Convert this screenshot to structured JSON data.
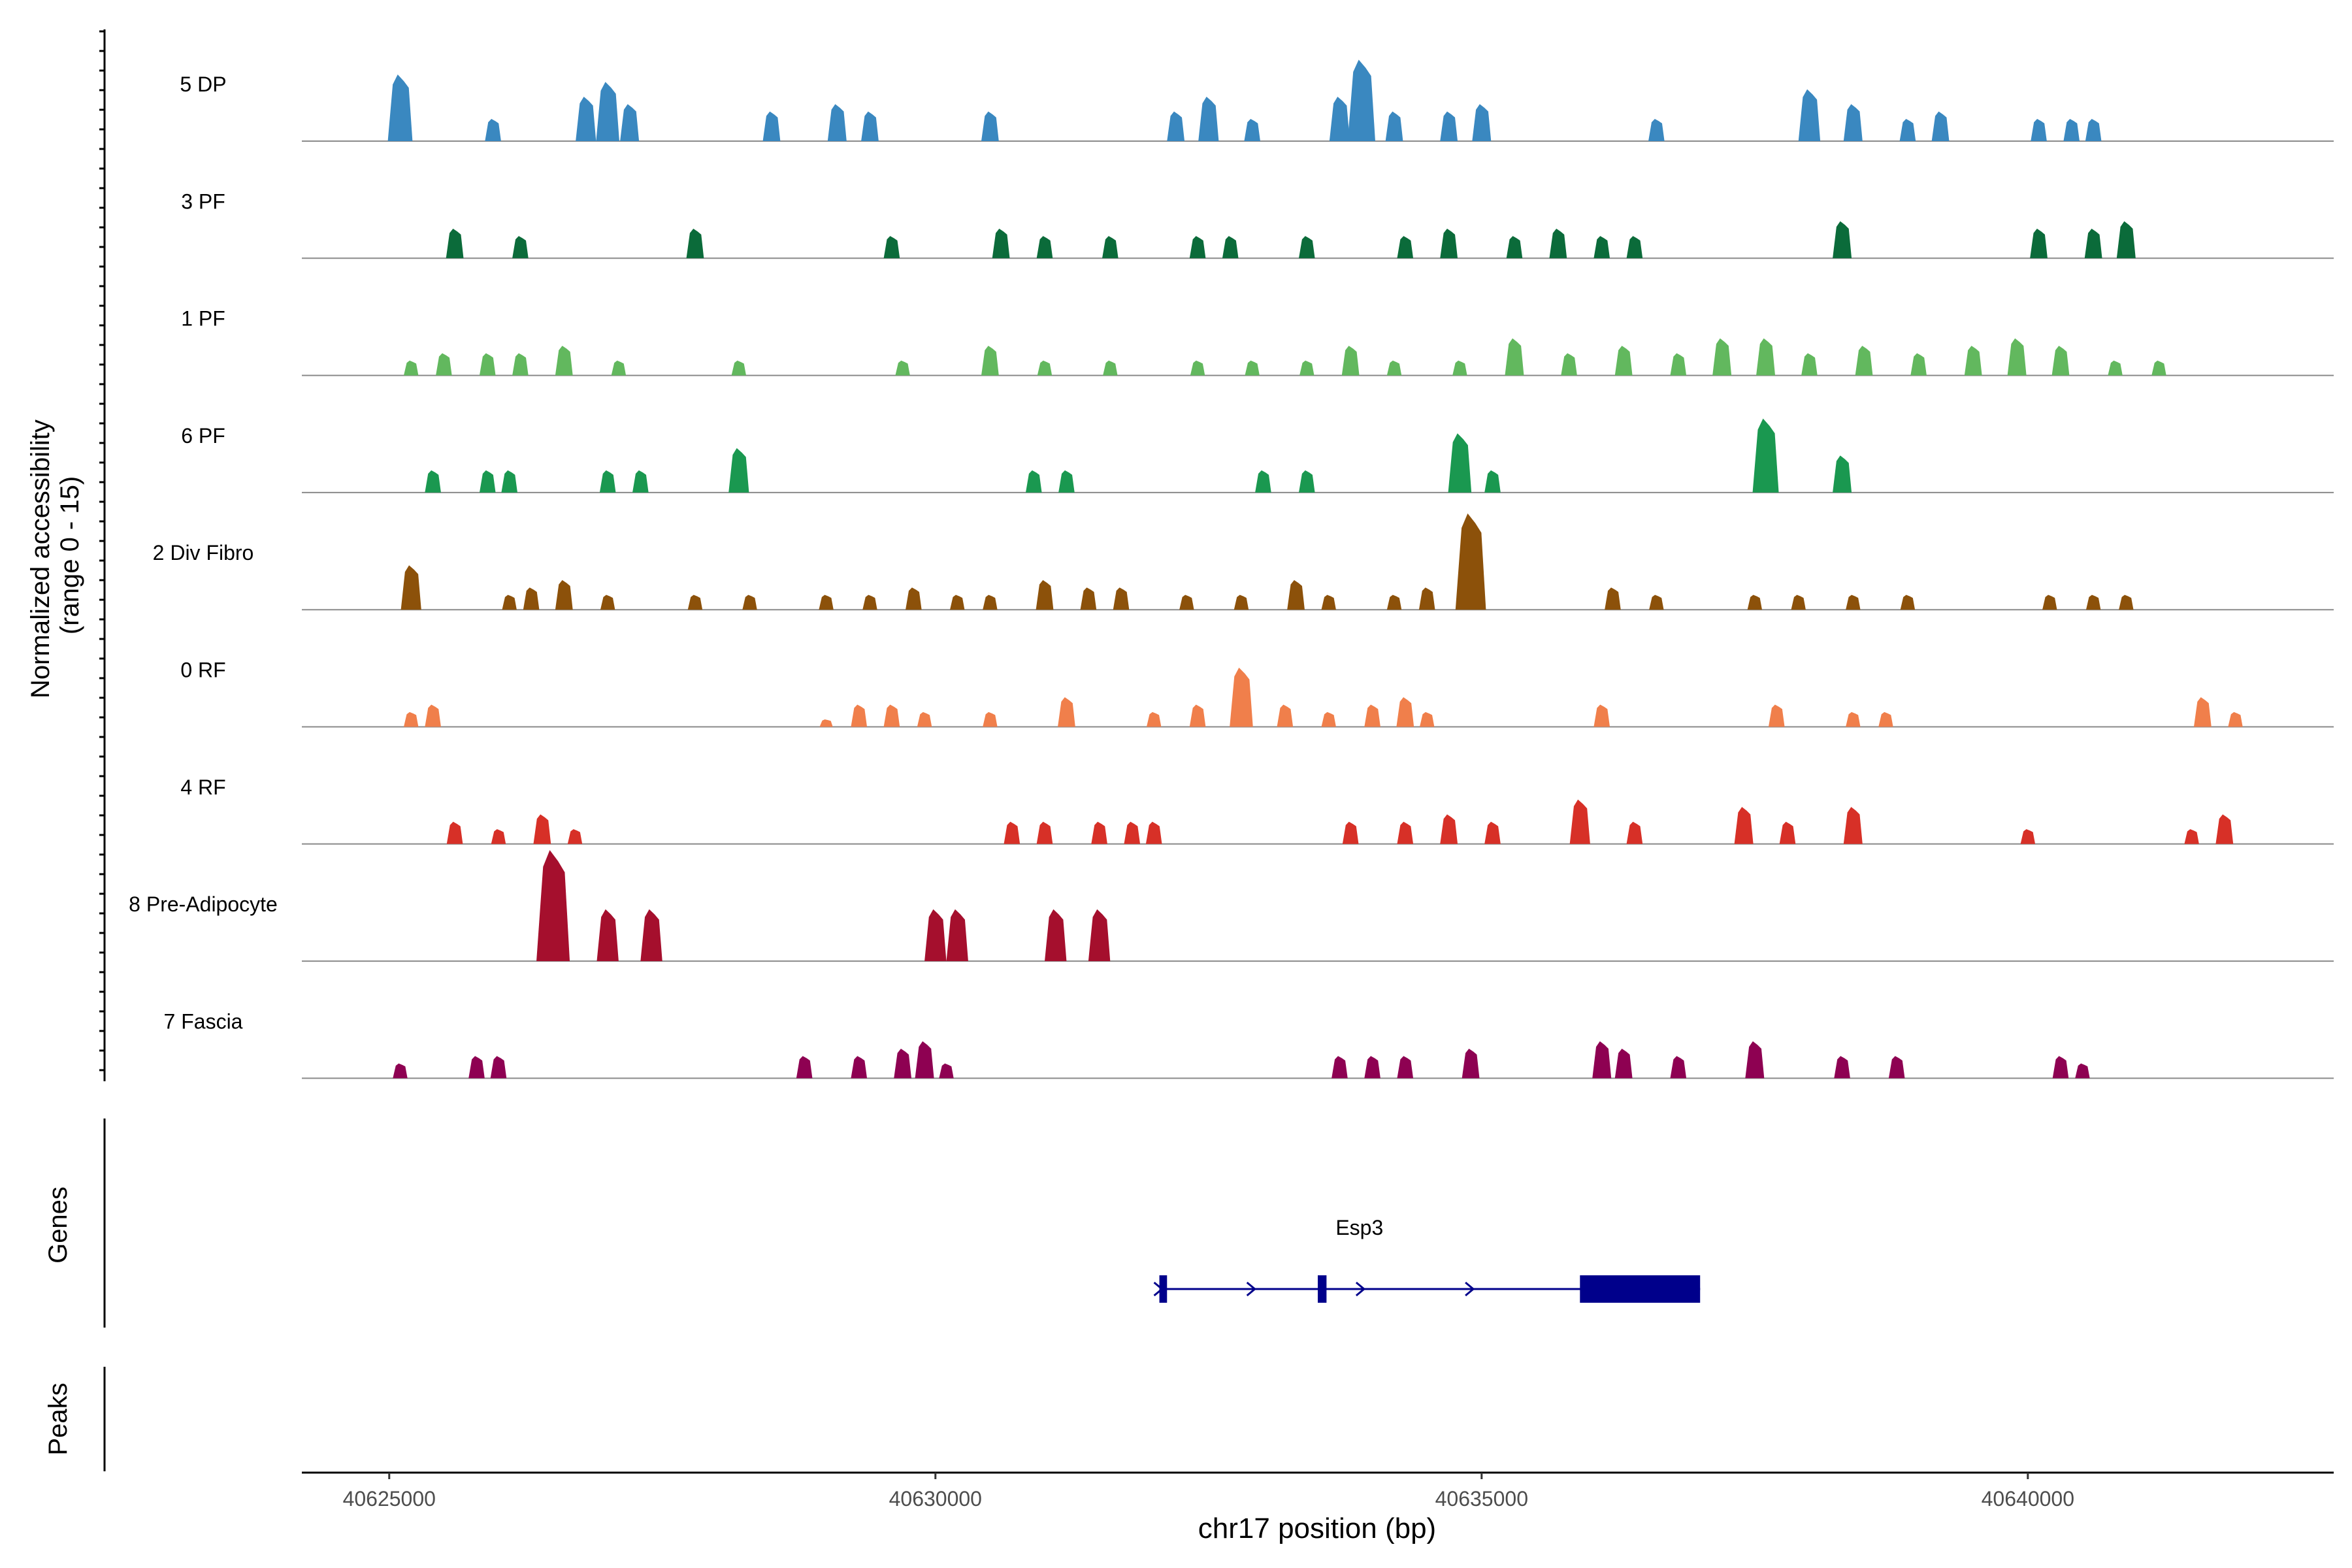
{
  "chart_data": {
    "type": "area",
    "title": "",
    "ylabel_line1": "Normalized accessibility",
    "ylabel_line2": "(range 0 - 15)",
    "xlabel": "chr17 position (bp)",
    "xlim": [
      40624200,
      40642800
    ],
    "ylim": [
      0,
      15
    ],
    "x_ticks": [
      40625000,
      40630000,
      40635000,
      40640000
    ],
    "x_tick_labels": [
      "40625000",
      "40630000",
      "40635000",
      "40640000"
    ],
    "tracks": [
      {
        "name": "5 DP",
        "color": "#3A88C0",
        "peaks": [
          [
            40625100,
            9
          ],
          [
            40625950,
            3
          ],
          [
            40626800,
            6
          ],
          [
            40627000,
            8
          ],
          [
            40627200,
            5
          ],
          [
            40628500,
            4
          ],
          [
            40629100,
            5
          ],
          [
            40629400,
            4
          ],
          [
            40630500,
            4
          ],
          [
            40632200,
            4
          ],
          [
            40632500,
            6
          ],
          [
            40632900,
            3
          ],
          [
            40633700,
            6
          ],
          [
            40633900,
            11
          ],
          [
            40634200,
            4
          ],
          [
            40634700,
            4
          ],
          [
            40635000,
            5
          ],
          [
            40636600,
            3
          ],
          [
            40638000,
            7
          ],
          [
            40638400,
            5
          ],
          [
            40638900,
            3
          ],
          [
            40639200,
            4
          ],
          [
            40640100,
            3
          ],
          [
            40640400,
            3
          ],
          [
            40640600,
            3
          ]
        ]
      },
      {
        "name": "3 PF",
        "color": "#0B6B3A",
        "peaks": [
          [
            40625600,
            4
          ],
          [
            40626200,
            3
          ],
          [
            40627800,
            4
          ],
          [
            40629600,
            3
          ],
          [
            40630600,
            4
          ],
          [
            40631000,
            3
          ],
          [
            40631600,
            3
          ],
          [
            40632400,
            3
          ],
          [
            40632700,
            3
          ],
          [
            40633400,
            3
          ],
          [
            40634300,
            3
          ],
          [
            40634700,
            4
          ],
          [
            40635300,
            3
          ],
          [
            40635700,
            4
          ],
          [
            40636100,
            3
          ],
          [
            40636400,
            3
          ],
          [
            40638300,
            5
          ],
          [
            40640100,
            4
          ],
          [
            40640600,
            4
          ],
          [
            40640900,
            5
          ]
        ]
      },
      {
        "name": "1 PF",
        "color": "#62B85E",
        "peaks": [
          [
            40625200,
            2
          ],
          [
            40625500,
            3
          ],
          [
            40625900,
            3
          ],
          [
            40626200,
            3
          ],
          [
            40626600,
            4
          ],
          [
            40627100,
            2
          ],
          [
            40628200,
            2
          ],
          [
            40629700,
            2
          ],
          [
            40630500,
            4
          ],
          [
            40631000,
            2
          ],
          [
            40631600,
            2
          ],
          [
            40632400,
            2
          ],
          [
            40632900,
            2
          ],
          [
            40633400,
            2
          ],
          [
            40633800,
            4
          ],
          [
            40634200,
            2
          ],
          [
            40634800,
            2
          ],
          [
            40635300,
            5
          ],
          [
            40635800,
            3
          ],
          [
            40636300,
            4
          ],
          [
            40636800,
            3
          ],
          [
            40637200,
            5
          ],
          [
            40637600,
            5
          ],
          [
            40638000,
            3
          ],
          [
            40638500,
            4
          ],
          [
            40639000,
            3
          ],
          [
            40639500,
            4
          ],
          [
            40639900,
            5
          ],
          [
            40640300,
            4
          ],
          [
            40640800,
            2
          ],
          [
            40641200,
            2
          ]
        ]
      },
      {
        "name": "6 PF",
        "color": "#1A9850",
        "peaks": [
          [
            40625400,
            3
          ],
          [
            40625900,
            3
          ],
          [
            40626100,
            3
          ],
          [
            40627000,
            3
          ],
          [
            40627300,
            3
          ],
          [
            40628200,
            6
          ],
          [
            40630900,
            3
          ],
          [
            40631200,
            3
          ],
          [
            40633000,
            3
          ],
          [
            40633400,
            3
          ],
          [
            40634800,
            8
          ],
          [
            40635100,
            3
          ],
          [
            40637600,
            10
          ],
          [
            40638300,
            5
          ]
        ]
      },
      {
        "name": "2 Div Fibro",
        "color": "#8C510A",
        "peaks": [
          [
            40625200,
            6
          ],
          [
            40626100,
            2
          ],
          [
            40626300,
            3
          ],
          [
            40626600,
            4
          ],
          [
            40627000,
            2
          ],
          [
            40627800,
            2
          ],
          [
            40628300,
            2
          ],
          [
            40629000,
            2
          ],
          [
            40629400,
            2
          ],
          [
            40629800,
            3
          ],
          [
            40630200,
            2
          ],
          [
            40630500,
            2
          ],
          [
            40631000,
            4
          ],
          [
            40631400,
            3
          ],
          [
            40631700,
            3
          ],
          [
            40632300,
            2
          ],
          [
            40632800,
            2
          ],
          [
            40633300,
            4
          ],
          [
            40633600,
            2
          ],
          [
            40634200,
            2
          ],
          [
            40634500,
            3
          ],
          [
            40634900,
            13
          ],
          [
            40636200,
            3
          ],
          [
            40636600,
            2
          ],
          [
            40637500,
            2
          ],
          [
            40637900,
            2
          ],
          [
            40638400,
            2
          ],
          [
            40638900,
            2
          ],
          [
            40640200,
            2
          ],
          [
            40640600,
            2
          ],
          [
            40640900,
            2
          ]
        ]
      },
      {
        "name": "0 RF",
        "color": "#F07F4B",
        "peaks": [
          [
            40625200,
            2
          ],
          [
            40625400,
            3
          ],
          [
            40629000,
            1
          ],
          [
            40629300,
            3
          ],
          [
            40629600,
            3
          ],
          [
            40629900,
            2
          ],
          [
            40630500,
            2
          ],
          [
            40631200,
            4
          ],
          [
            40632000,
            2
          ],
          [
            40632400,
            3
          ],
          [
            40632800,
            8
          ],
          [
            40633200,
            3
          ],
          [
            40633600,
            2
          ],
          [
            40634000,
            3
          ],
          [
            40634300,
            4
          ],
          [
            40634500,
            2
          ],
          [
            40636100,
            3
          ],
          [
            40637700,
            3
          ],
          [
            40638400,
            2
          ],
          [
            40638700,
            2
          ],
          [
            40641600,
            4
          ],
          [
            40641900,
            2
          ]
        ]
      },
      {
        "name": "4 RF",
        "color": "#D73027",
        "peaks": [
          [
            40625600,
            3
          ],
          [
            40626000,
            2
          ],
          [
            40626400,
            4
          ],
          [
            40626700,
            2
          ],
          [
            40630700,
            3
          ],
          [
            40631000,
            3
          ],
          [
            40631500,
            3
          ],
          [
            40631800,
            3
          ],
          [
            40632000,
            3
          ],
          [
            40633800,
            3
          ],
          [
            40634300,
            3
          ],
          [
            40634700,
            4
          ],
          [
            40635100,
            3
          ],
          [
            40635900,
            6
          ],
          [
            40636400,
            3
          ],
          [
            40637400,
            5
          ],
          [
            40637800,
            3
          ],
          [
            40638400,
            5
          ],
          [
            40640000,
            2
          ],
          [
            40641500,
            2
          ],
          [
            40641800,
            4
          ]
        ]
      },
      {
        "name": "8 Pre-Adipocyte",
        "color": "#A50F2D",
        "peaks": [
          [
            40626500,
            15
          ],
          [
            40627000,
            7
          ],
          [
            40627400,
            7
          ],
          [
            40630000,
            7
          ],
          [
            40630200,
            7
          ],
          [
            40631100,
            7
          ],
          [
            40631500,
            7
          ]
        ]
      },
      {
        "name": "7 Fascia",
        "color": "#8E0152",
        "peaks": [
          [
            40625100,
            2
          ],
          [
            40625800,
            3
          ],
          [
            40626000,
            3
          ],
          [
            40628800,
            3
          ],
          [
            40629300,
            3
          ],
          [
            40629700,
            4
          ],
          [
            40629900,
            5
          ],
          [
            40630100,
            2
          ],
          [
            40633700,
            3
          ],
          [
            40634000,
            3
          ],
          [
            40634300,
            3
          ],
          [
            40634900,
            4
          ],
          [
            40636100,
            5
          ],
          [
            40636300,
            4
          ],
          [
            40636800,
            3
          ],
          [
            40637500,
            5
          ],
          [
            40638300,
            3
          ],
          [
            40638800,
            3
          ],
          [
            40640300,
            3
          ],
          [
            40640500,
            2
          ]
        ]
      }
    ],
    "genes_label": "Genes",
    "peaks_label": "Peaks",
    "gene": {
      "name": "Esp3",
      "color": "#00008B",
      "start": 40632050,
      "end": 40637000,
      "exons": [
        [
          40632050,
          40632120
        ],
        [
          40633500,
          40633580
        ],
        [
          40635900,
          40637000
        ]
      ],
      "arrows": [
        40632050,
        40632900,
        40633900,
        40634900
      ]
    }
  }
}
